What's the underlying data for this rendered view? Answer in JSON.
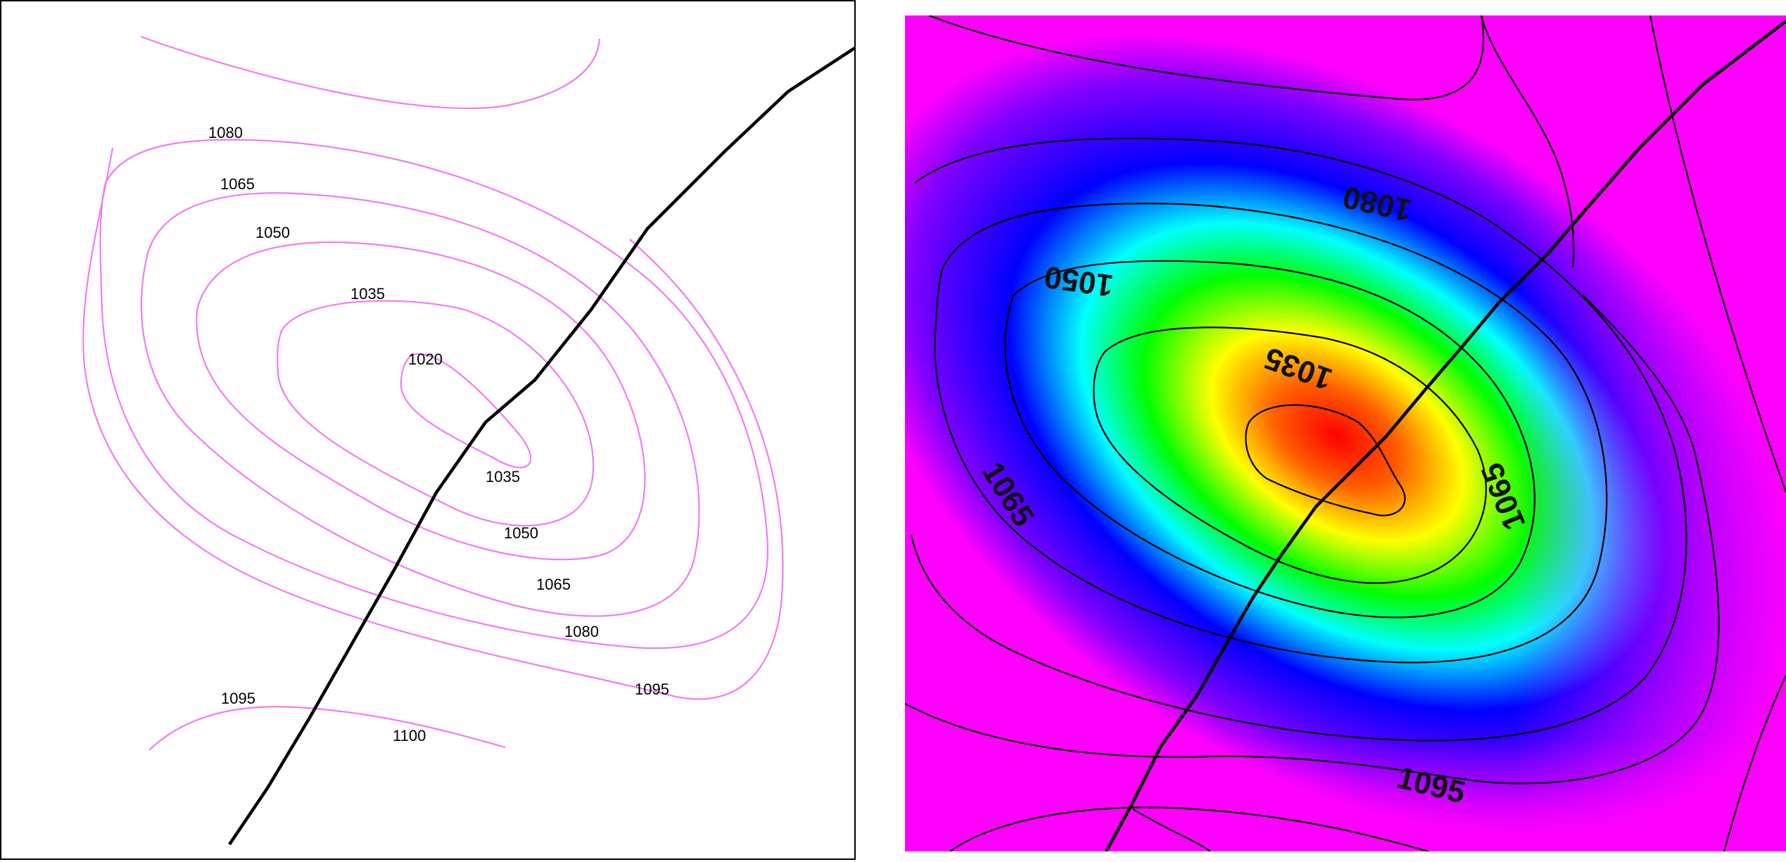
{
  "left_panel": {
    "contour_color": "#f07cf0",
    "line_color": "#000000",
    "labels": [
      "1020",
      "1035",
      "1035",
      "1050",
      "1050",
      "1065",
      "1065",
      "1080",
      "1080",
      "1095",
      "1095",
      "1100"
    ]
  },
  "right_panel": {
    "contour_color": "#000000",
    "line_color": "#000000",
    "colormap": [
      "#ff0000",
      "#ffff00",
      "#00ff00",
      "#00ffff",
      "#0000ff",
      "#ff00ff"
    ],
    "labels": [
      "1080",
      "1050",
      "1035",
      "1065",
      "1065",
      "1095"
    ]
  }
}
